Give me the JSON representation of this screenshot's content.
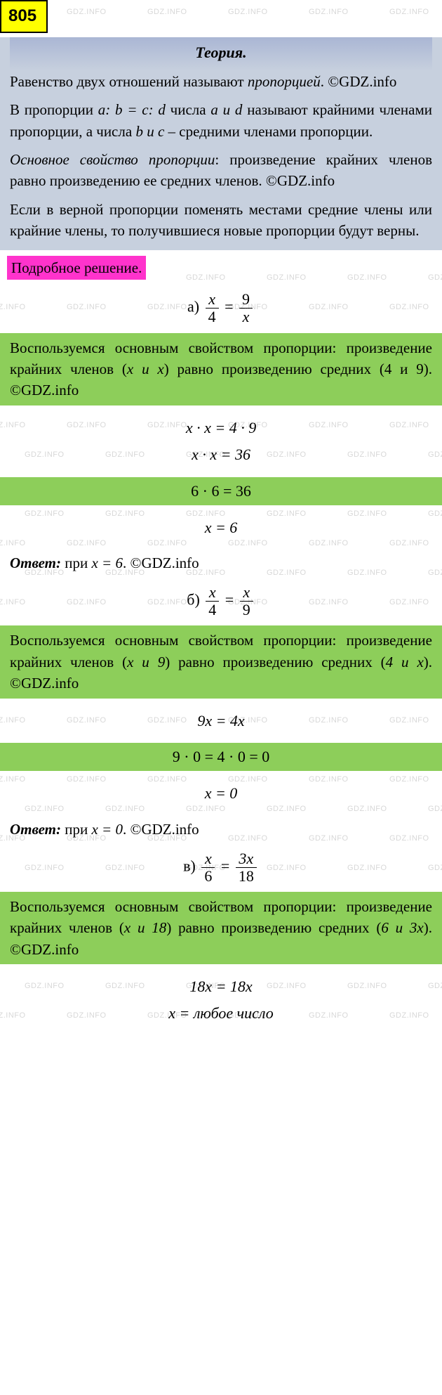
{
  "badge": "805",
  "watermark_text": "GDZ.INFO",
  "watermark_color": "#b8b8b8",
  "theory": {
    "title": "Теория.",
    "p1_a": "Равенство двух отношений называют ",
    "p1_b": "пропорцией",
    "p1_c": ". ©GDZ.info",
    "p2_a": "В пропорции ",
    "p2_expr": "a: b = c: d",
    "p2_b": " числа ",
    "p2_ad": "a и d",
    "p2_c": " называют крайними членами пропорции, а числа ",
    "p2_bc": "b и c",
    "p2_d": " – средними членами пропорции.",
    "p3_a": "Основное свойство пропорции",
    "p3_b": ": произведение крайних членов равно произведению ее средних членов. ©GDZ.info",
    "p4": "Если в верной пропорции поменять местами средние члены или крайние члены, то получившиеся новые пропорции будут верны."
  },
  "solution_label": "Подробное решение.",
  "a": {
    "label": "а)",
    "frac1_num": "x",
    "frac1_den": "4",
    "frac2_num": "9",
    "frac2_den": "x",
    "explain_a": "Воспользуемся основным свойством пропорции: произведение крайних членов (",
    "explain_terms1": "x и x",
    "explain_b": ") равно произведению средних (",
    "explain_terms2": "4 и 9",
    "explain_c": "). ©GDZ.info",
    "step1": "x · x = 4 · 9",
    "step2": "x · x = 36",
    "highlight": "6 · 6 = 36",
    "step3": "x = 6",
    "answer_a": "Ответ:",
    "answer_b": " при ",
    "answer_val": "x = 6",
    "answer_c": ". ©GDZ.info"
  },
  "b": {
    "label": "б)",
    "frac1_num": "x",
    "frac1_den": "4",
    "frac2_num": "x",
    "frac2_den": "9",
    "explain_a": "Воспользуемся основным свойством пропорции: произведение крайних членов (",
    "explain_terms1": "x и 9",
    "explain_b": ") равно произведению средних (",
    "explain_terms2": "4 и x",
    "explain_c": "). ©GDZ.info",
    "step1": "9x = 4x",
    "highlight": "9 · 0 = 4 · 0 = 0",
    "step2": "x = 0",
    "answer_a": "Ответ:",
    "answer_b": " при ",
    "answer_val": "x = 0",
    "answer_c": ". ©GDZ.info"
  },
  "c": {
    "label": "в)",
    "frac1_num": "x",
    "frac1_den": "6",
    "frac2_num": "3x",
    "frac2_den": "18",
    "explain_a": "Воспользуемся основным свойством пропорции: произведение крайних членов (",
    "explain_terms1": "x и 18",
    "explain_b": ") равно произведению средних (",
    "explain_terms2": "6 и 3x",
    "explain_c": "). ©GDZ.info",
    "step1": "18x = 18x",
    "step2": "x = любое число"
  },
  "colors": {
    "badge_bg": "#ffff00",
    "theory_bg": "#c7d0de",
    "solution_bg": "#ff33cc",
    "green_bg": "#8dce5a"
  }
}
